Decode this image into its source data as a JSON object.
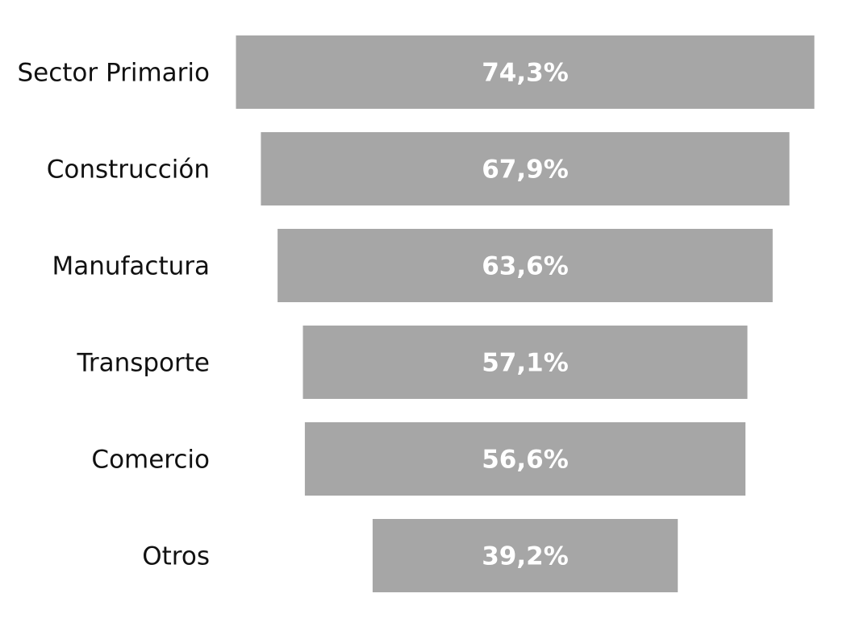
{
  "chart_data": {
    "type": "bar",
    "orientation": "horizontal-centered",
    "title": "",
    "xlabel": "",
    "ylabel": "",
    "categories": [
      "Sector Primario",
      "Construcción",
      "Manufactura",
      "Transporte",
      "Comercio",
      "Otros"
    ],
    "values": [
      74.3,
      67.9,
      63.6,
      57.1,
      56.6,
      39.2
    ],
    "value_labels": [
      "74,3%",
      "67,9%",
      "63,6%",
      "57,1%",
      "56,6%",
      "39,2%"
    ],
    "unit": "%",
    "grid": false,
    "legend": "none",
    "bar_color": "#a6a6a6",
    "value_label_color": "#ffffff",
    "category_label_color": "#111111"
  }
}
